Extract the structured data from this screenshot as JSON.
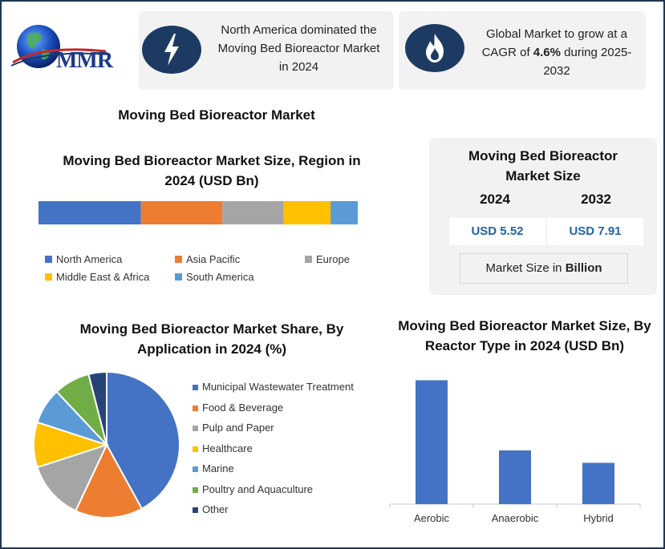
{
  "logo": {
    "text": "MMR"
  },
  "header_cards": [
    {
      "icon": "lightning-icon",
      "text": "North America dominated the Moving Bed Bioreactor Market in 2024"
    },
    {
      "icon": "flame-icon",
      "text_before": "Global Market to grow at a CAGR of ",
      "text_bold": "4.6%",
      "text_after": " during 2025-2032"
    }
  ],
  "main_title": "Moving Bed Bioreactor Market",
  "market_size": {
    "title": "Moving Bed Bioreactor Market Size",
    "year1": "2024",
    "year2": "2032",
    "value1": "USD 5.52",
    "value2": "USD 7.91",
    "note_prefix": "Market Size in ",
    "note_bold": "Billion"
  },
  "colors": {
    "navy": "#1d3a63",
    "north_america": "#4472c4",
    "asia_pacific": "#ed7d31",
    "europe": "#a5a5a5",
    "middle_east_africa": "#ffc000",
    "south_america": "#5b9bd5",
    "poultry": "#70ad47",
    "other": "#264478"
  },
  "chart_data": [
    {
      "type": "bar",
      "orientation": "stacked-horizontal",
      "title": "Moving Bed Bioreactor Market Size, Region in 2024 (USD Bn)",
      "series": [
        {
          "name": "North America",
          "values": [
            1.77
          ]
        },
        {
          "name": "Asia Pacific",
          "values": [
            1.41
          ]
        },
        {
          "name": "Europe",
          "values": [
            1.06
          ]
        },
        {
          "name": "Middle East & Africa",
          "values": [
            0.81
          ]
        },
        {
          "name": "South America",
          "values": [
            0.47
          ]
        }
      ],
      "legend": "bottom"
    },
    {
      "type": "pie",
      "title": "Moving Bed Bioreactor Market Share, By Application in 2024 (%)",
      "labels": [
        "Municipal Wastewater Treatment",
        "Food & Beverage",
        "Pulp and Paper",
        "Healthcare",
        "Marine",
        "Poultry and Aquaculture",
        "Other"
      ],
      "values": [
        42,
        15,
        13,
        10,
        8,
        8,
        4
      ],
      "legend": "right"
    },
    {
      "type": "bar",
      "title": "Moving Bed Bioreactor Market Size, By Reactor Type in 2024 (USD Bn)",
      "categories": [
        "Aerobic",
        "Anaerobic",
        "Hybrid"
      ],
      "values": [
        3.0,
        1.3,
        1.0
      ],
      "ylim": [
        0,
        3.3
      ],
      "grid": false
    }
  ]
}
